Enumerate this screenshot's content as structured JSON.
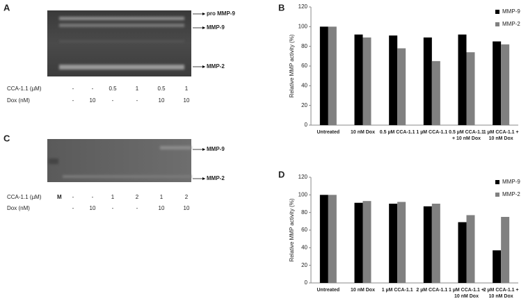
{
  "gels": [
    {
      "panel": "A",
      "bands": [
        "pro MMP-9",
        "MMP-9",
        "MMP-2"
      ],
      "rows": [
        {
          "label": "CCA-1.1 (µM)",
          "values": [
            "-",
            "-",
            "0.5",
            "1",
            "0.5",
            "1"
          ]
        },
        {
          "label": "Dox (nM)",
          "values": [
            "-",
            "10",
            "-",
            "-",
            "10",
            "10"
          ]
        }
      ]
    },
    {
      "panel": "C",
      "marker": "M",
      "bands": [
        "MMP-9",
        "MMP-2"
      ],
      "rows": [
        {
          "label": "CCA-1.1 (µM)",
          "values": [
            "-",
            "-",
            "1",
            "2",
            "1",
            "2"
          ]
        },
        {
          "label": "Dox (nM)",
          "values": [
            "-",
            "10",
            "-",
            "-",
            "10",
            "10"
          ]
        }
      ]
    }
  ],
  "chart_data": [
    {
      "type": "bar",
      "panel": "B",
      "y_label": "Relative MMP activity (%)",
      "categories": [
        "Untreated",
        "10 nM Dox",
        "0.5 µM CCA-1.1",
        "1 µM CCA-1.1",
        "0.5 µM CCA-1.1 + 10 nM Dox",
        "1 µM CCA-1.1 + 10 nM Dox"
      ],
      "series": [
        {
          "name": "MMP-9",
          "color": "#000000",
          "values": [
            100,
            92,
            91,
            89,
            92,
            85
          ]
        },
        {
          "name": "MMP-2",
          "color": "#808080",
          "values": [
            100,
            89,
            78,
            65,
            74,
            82
          ]
        }
      ],
      "ylim": [
        0,
        120
      ],
      "yticks": [
        0,
        20,
        40,
        60,
        80,
        100,
        120
      ],
      "legend": "right"
    },
    {
      "type": "bar",
      "panel": "D",
      "y_label": "Relative MMP activity (%)",
      "categories": [
        "Untreated",
        "10 nM Dox",
        "1 µM CCA-1.1",
        "2 µM CCA-1.1",
        "1 µM CCA-1.1 + 10 nM Dox",
        "2 µM CCA-1.1 + 10 nM Dox"
      ],
      "series": [
        {
          "name": "MMP-9",
          "color": "#000000",
          "values": [
            100,
            91,
            90,
            87,
            69,
            37
          ]
        },
        {
          "name": "MMP-2",
          "color": "#808080",
          "values": [
            100,
            93,
            92,
            90,
            77,
            75
          ]
        }
      ],
      "ylim": [
        0,
        120
      ],
      "yticks": [
        0,
        20,
        40,
        60,
        80,
        100,
        120
      ],
      "legend": "right"
    }
  ]
}
